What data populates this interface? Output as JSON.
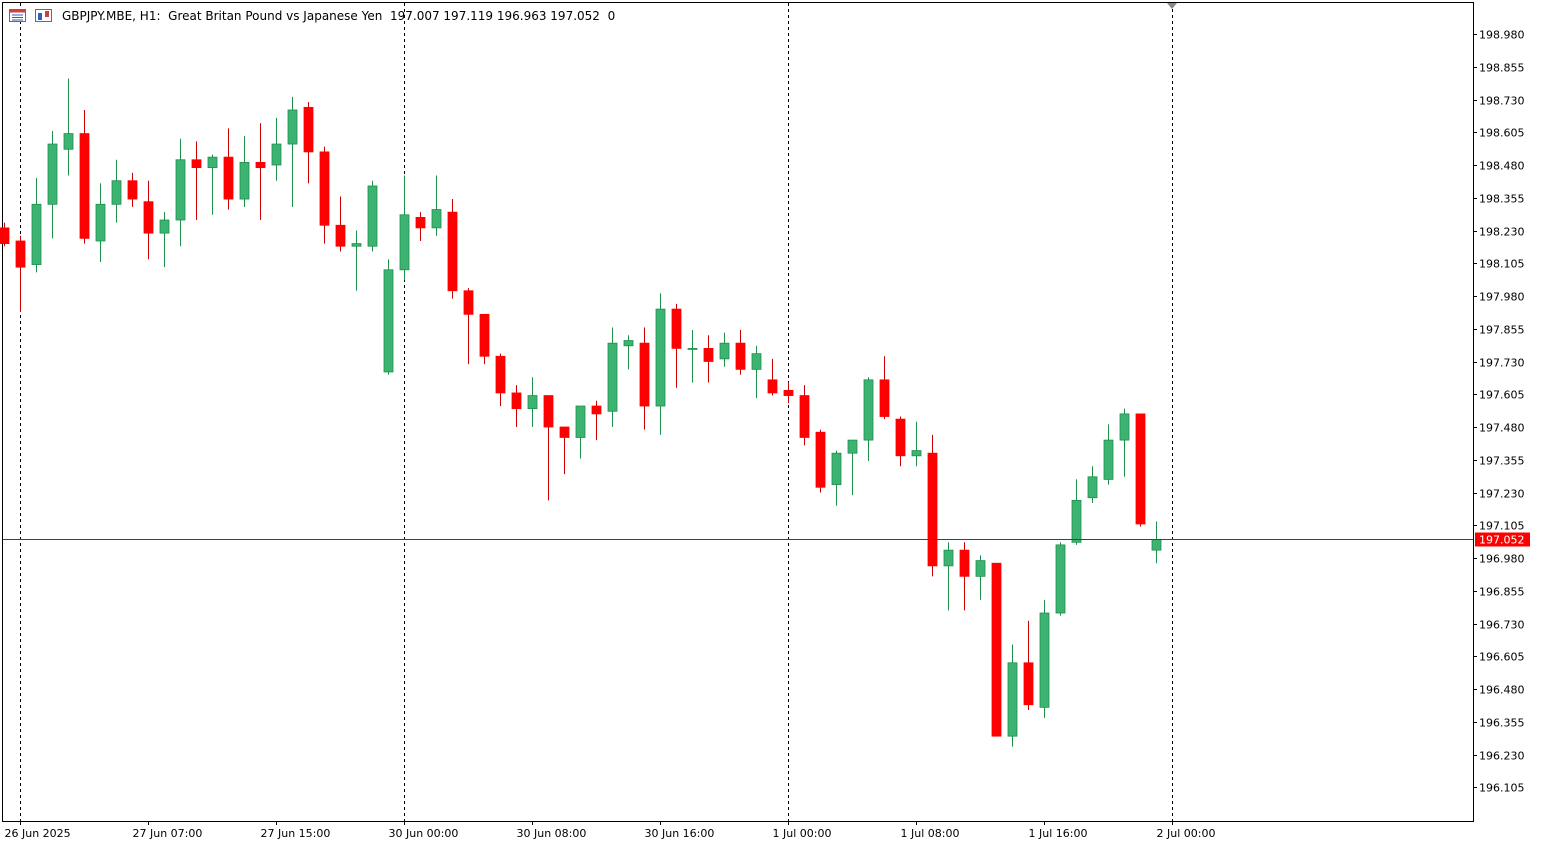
{
  "header": {
    "symbol": "GBPJPY.MBE, H1:",
    "description": "Great Britan Pound vs Japanese Yen",
    "ohlc": "197.007 197.119 196.963 197.052",
    "volume": "0",
    "icons": [
      "chart-window-icon",
      "candles-icon"
    ]
  },
  "colors": {
    "bull": "#3cb371",
    "bear": "#ff0000",
    "wick_bull": "#1e8f4b",
    "wick_bear": "#cc0000",
    "price_line": "#e00000",
    "price_label_bg": "#ff0000",
    "axis": "#000000",
    "separator": "#000000"
  },
  "chart_data": {
    "type": "candlestick",
    "symbol": "GBPJPY.MBE",
    "timeframe": "H1",
    "current_price": 197.052,
    "current_price_label": "197.052",
    "ylim": [
      196.04,
      199.05
    ],
    "y_ticks": [
      "198.980",
      "198.855",
      "198.730",
      "198.605",
      "198.480",
      "198.355",
      "198.230",
      "198.105",
      "197.980",
      "197.855",
      "197.730",
      "197.605",
      "197.480",
      "197.355",
      "197.230",
      "197.105",
      "196.980",
      "196.855",
      "196.730",
      "196.605",
      "196.480",
      "196.355",
      "196.230",
      "196.105"
    ],
    "x_ticks": [
      {
        "index": 1,
        "label": "26 Jun 2025"
      },
      {
        "index": 9,
        "label": "27 Jun 07:00"
      },
      {
        "index": 17,
        "label": "27 Jun 15:00"
      },
      {
        "index": 25,
        "label": "30 Jun 00:00"
      },
      {
        "index": 33,
        "label": "30 Jun 08:00"
      },
      {
        "index": 41,
        "label": "30 Jun 16:00"
      },
      {
        "index": 49,
        "label": "1 Jul 00:00"
      },
      {
        "index": 57,
        "label": "1 Jul 08:00"
      },
      {
        "index": 65,
        "label": "1 Jul 16:00"
      },
      {
        "index": 73,
        "label": "2 Jul 00:00"
      }
    ],
    "day_separators": [
      1,
      25,
      49,
      73
    ],
    "candles": [
      {
        "o": 198.24,
        "h": 198.26,
        "l": 198.17,
        "c": 198.18
      },
      {
        "o": 198.19,
        "h": 198.21,
        "l": 197.92,
        "c": 198.09
      },
      {
        "o": 198.1,
        "h": 198.43,
        "l": 198.07,
        "c": 198.33
      },
      {
        "o": 198.33,
        "h": 198.61,
        "l": 198.2,
        "c": 198.56
      },
      {
        "o": 198.54,
        "h": 198.81,
        "l": 198.44,
        "c": 198.6
      },
      {
        "o": 198.6,
        "h": 198.69,
        "l": 198.18,
        "c": 198.2
      },
      {
        "o": 198.19,
        "h": 198.41,
        "l": 198.11,
        "c": 198.33
      },
      {
        "o": 198.33,
        "h": 198.5,
        "l": 198.26,
        "c": 198.42
      },
      {
        "o": 198.42,
        "h": 198.45,
        "l": 198.32,
        "c": 198.35
      },
      {
        "o": 198.34,
        "h": 198.42,
        "l": 198.12,
        "c": 198.22
      },
      {
        "o": 198.22,
        "h": 198.3,
        "l": 198.09,
        "c": 198.27
      },
      {
        "o": 198.27,
        "h": 198.58,
        "l": 198.17,
        "c": 198.5
      },
      {
        "o": 198.5,
        "h": 198.57,
        "l": 198.27,
        "c": 198.47
      },
      {
        "o": 198.47,
        "h": 198.52,
        "l": 198.29,
        "c": 198.51
      },
      {
        "o": 198.51,
        "h": 198.62,
        "l": 198.31,
        "c": 198.35
      },
      {
        "o": 198.35,
        "h": 198.59,
        "l": 198.32,
        "c": 198.49
      },
      {
        "o": 198.49,
        "h": 198.64,
        "l": 198.27,
        "c": 198.47
      },
      {
        "o": 198.48,
        "h": 198.66,
        "l": 198.42,
        "c": 198.56
      },
      {
        "o": 198.56,
        "h": 198.74,
        "l": 198.32,
        "c": 198.69
      },
      {
        "o": 198.7,
        "h": 198.72,
        "l": 198.41,
        "c": 198.53
      },
      {
        "o": 198.53,
        "h": 198.55,
        "l": 198.18,
        "c": 198.25
      },
      {
        "o": 198.25,
        "h": 198.36,
        "l": 198.15,
        "c": 198.17
      },
      {
        "o": 198.17,
        "h": 198.23,
        "l": 198.0,
        "c": 198.18
      },
      {
        "o": 198.17,
        "h": 198.42,
        "l": 198.15,
        "c": 198.4
      },
      {
        "o": 197.69,
        "h": 198.12,
        "l": 197.68,
        "c": 198.08
      },
      {
        "o": 198.08,
        "h": 198.44,
        "l": 198.04,
        "c": 198.29
      },
      {
        "o": 198.28,
        "h": 198.3,
        "l": 198.19,
        "c": 198.24
      },
      {
        "o": 198.24,
        "h": 198.44,
        "l": 198.21,
        "c": 198.31
      },
      {
        "o": 198.3,
        "h": 198.35,
        "l": 197.97,
        "c": 198.0
      },
      {
        "o": 198.0,
        "h": 198.01,
        "l": 197.72,
        "c": 197.91
      },
      {
        "o": 197.91,
        "h": 197.91,
        "l": 197.72,
        "c": 197.75
      },
      {
        "o": 197.75,
        "h": 197.76,
        "l": 197.56,
        "c": 197.61
      },
      {
        "o": 197.61,
        "h": 197.64,
        "l": 197.48,
        "c": 197.55
      },
      {
        "o": 197.55,
        "h": 197.67,
        "l": 197.48,
        "c": 197.6
      },
      {
        "o": 197.6,
        "h": 197.6,
        "l": 197.2,
        "c": 197.48
      },
      {
        "o": 197.48,
        "h": 197.48,
        "l": 197.3,
        "c": 197.44
      },
      {
        "o": 197.44,
        "h": 197.55,
        "l": 197.36,
        "c": 197.56
      },
      {
        "o": 197.56,
        "h": 197.58,
        "l": 197.43,
        "c": 197.53
      },
      {
        "o": 197.54,
        "h": 197.86,
        "l": 197.48,
        "c": 197.8
      },
      {
        "o": 197.79,
        "h": 197.83,
        "l": 197.7,
        "c": 197.81
      },
      {
        "o": 197.8,
        "h": 197.86,
        "l": 197.47,
        "c": 197.56
      },
      {
        "o": 197.56,
        "h": 197.99,
        "l": 197.45,
        "c": 197.93
      },
      {
        "o": 197.93,
        "h": 197.95,
        "l": 197.63,
        "c": 197.78
      },
      {
        "o": 197.78,
        "h": 197.85,
        "l": 197.65,
        "c": 197.78
      },
      {
        "o": 197.78,
        "h": 197.83,
        "l": 197.65,
        "c": 197.73
      },
      {
        "o": 197.74,
        "h": 197.84,
        "l": 197.71,
        "c": 197.8
      },
      {
        "o": 197.8,
        "h": 197.85,
        "l": 197.68,
        "c": 197.7
      },
      {
        "o": 197.7,
        "h": 197.79,
        "l": 197.59,
        "c": 197.76
      },
      {
        "o": 197.66,
        "h": 197.74,
        "l": 197.6,
        "c": 197.61
      },
      {
        "o": 197.62,
        "h": 197.65,
        "l": 197.57,
        "c": 197.6
      },
      {
        "o": 197.6,
        "h": 197.64,
        "l": 197.41,
        "c": 197.44
      },
      {
        "o": 197.46,
        "h": 197.47,
        "l": 197.23,
        "c": 197.25
      },
      {
        "o": 197.26,
        "h": 197.39,
        "l": 197.18,
        "c": 197.38
      },
      {
        "o": 197.38,
        "h": 197.43,
        "l": 197.22,
        "c": 197.43
      },
      {
        "o": 197.43,
        "h": 197.67,
        "l": 197.35,
        "c": 197.66
      },
      {
        "o": 197.66,
        "h": 197.75,
        "l": 197.51,
        "c": 197.52
      },
      {
        "o": 197.51,
        "h": 197.52,
        "l": 197.33,
        "c": 197.37
      },
      {
        "o": 197.37,
        "h": 197.5,
        "l": 197.33,
        "c": 197.39
      },
      {
        "o": 197.38,
        "h": 197.45,
        "l": 196.91,
        "c": 196.95
      },
      {
        "o": 196.95,
        "h": 197.04,
        "l": 196.78,
        "c": 197.01
      },
      {
        "o": 197.01,
        "h": 197.04,
        "l": 196.78,
        "c": 196.91
      },
      {
        "o": 196.91,
        "h": 196.99,
        "l": 196.82,
        "c": 196.97
      },
      {
        "o": 196.96,
        "h": 196.96,
        "l": 196.3,
        "c": 196.3
      },
      {
        "o": 196.3,
        "h": 196.65,
        "l": 196.26,
        "c": 196.58
      },
      {
        "o": 196.58,
        "h": 196.74,
        "l": 196.4,
        "c": 196.42
      },
      {
        "o": 196.41,
        "h": 196.82,
        "l": 196.37,
        "c": 196.77
      },
      {
        "o": 196.77,
        "h": 197.04,
        "l": 196.76,
        "c": 197.03
      },
      {
        "o": 197.04,
        "h": 197.28,
        "l": 197.03,
        "c": 197.2
      },
      {
        "o": 197.21,
        "h": 197.33,
        "l": 197.19,
        "c": 197.29
      },
      {
        "o": 197.28,
        "h": 197.49,
        "l": 197.26,
        "c": 197.43
      },
      {
        "o": 197.43,
        "h": 197.55,
        "l": 197.29,
        "c": 197.53
      },
      {
        "o": 197.53,
        "h": 197.53,
        "l": 197.1,
        "c": 197.11
      },
      {
        "o": 197.01,
        "h": 197.12,
        "l": 196.96,
        "c": 197.05
      }
    ]
  }
}
